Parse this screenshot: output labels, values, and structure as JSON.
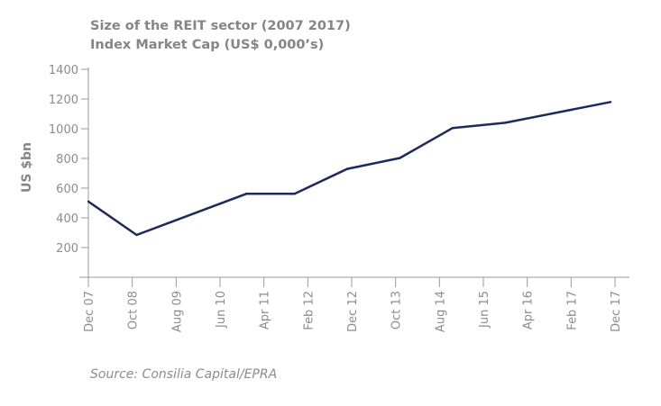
{
  "chart_data": {
    "type": "line",
    "title": "Size of the REIT sector (2007 2017)",
    "subtitle": "Index Market Cap (US$  0,000’s)",
    "xlabel": "",
    "ylabel": "US $bn",
    "ylim": [
      0,
      1400
    ],
    "yticks": [
      200,
      400,
      600,
      800,
      1000,
      1200,
      1400
    ],
    "x_unit": "months since Dec 2007",
    "xlim": [
      0,
      120
    ],
    "xtick_labels": [
      "Dec 07",
      "Oct 08",
      "Aug 09",
      "Jun 10",
      "Apr 11",
      "Feb 12",
      "Dec 12",
      "Oct 13",
      "Aug 14",
      "Jun 15",
      "Apr 16",
      "Feb 17",
      "Dec 17"
    ],
    "grid": false,
    "series": [
      {
        "name": "REIT Index Market Cap",
        "color": "#1f2a5c",
        "x": [
          0,
          11,
          36,
          47,
          59,
          71,
          83,
          95,
          119
        ],
        "values": [
          510,
          285,
          562,
          562,
          730,
          803,
          1005,
          1040,
          1180
        ]
      }
    ],
    "source": "Source: Consilia Capital/EPRA"
  }
}
